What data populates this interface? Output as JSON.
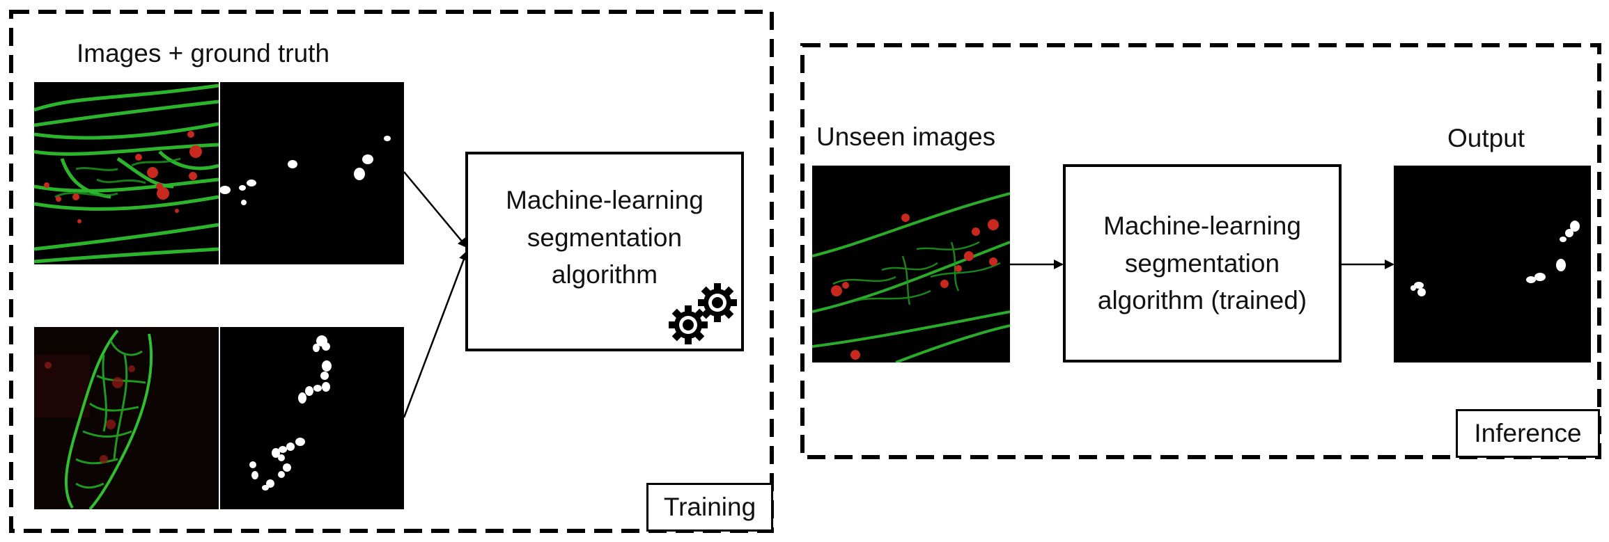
{
  "training": {
    "title": "Images + ground truth",
    "algorithm_lines": [
      "Machine-learning",
      "segmentation",
      "algorithm"
    ],
    "tag": "Training",
    "gear_icon": "gear-icon"
  },
  "inference": {
    "input_label": "Unseen images",
    "algorithm_lines": [
      "Machine-learning",
      "segmentation",
      "algorithm (trained)"
    ],
    "output_label": "Output",
    "tag": "Inference"
  },
  "colors": {
    "border": "#000000",
    "vessel_green": "#2fbf2f",
    "cell_red": "#c8281e",
    "mask_white": "#ffffff",
    "background_black": "#000000"
  }
}
